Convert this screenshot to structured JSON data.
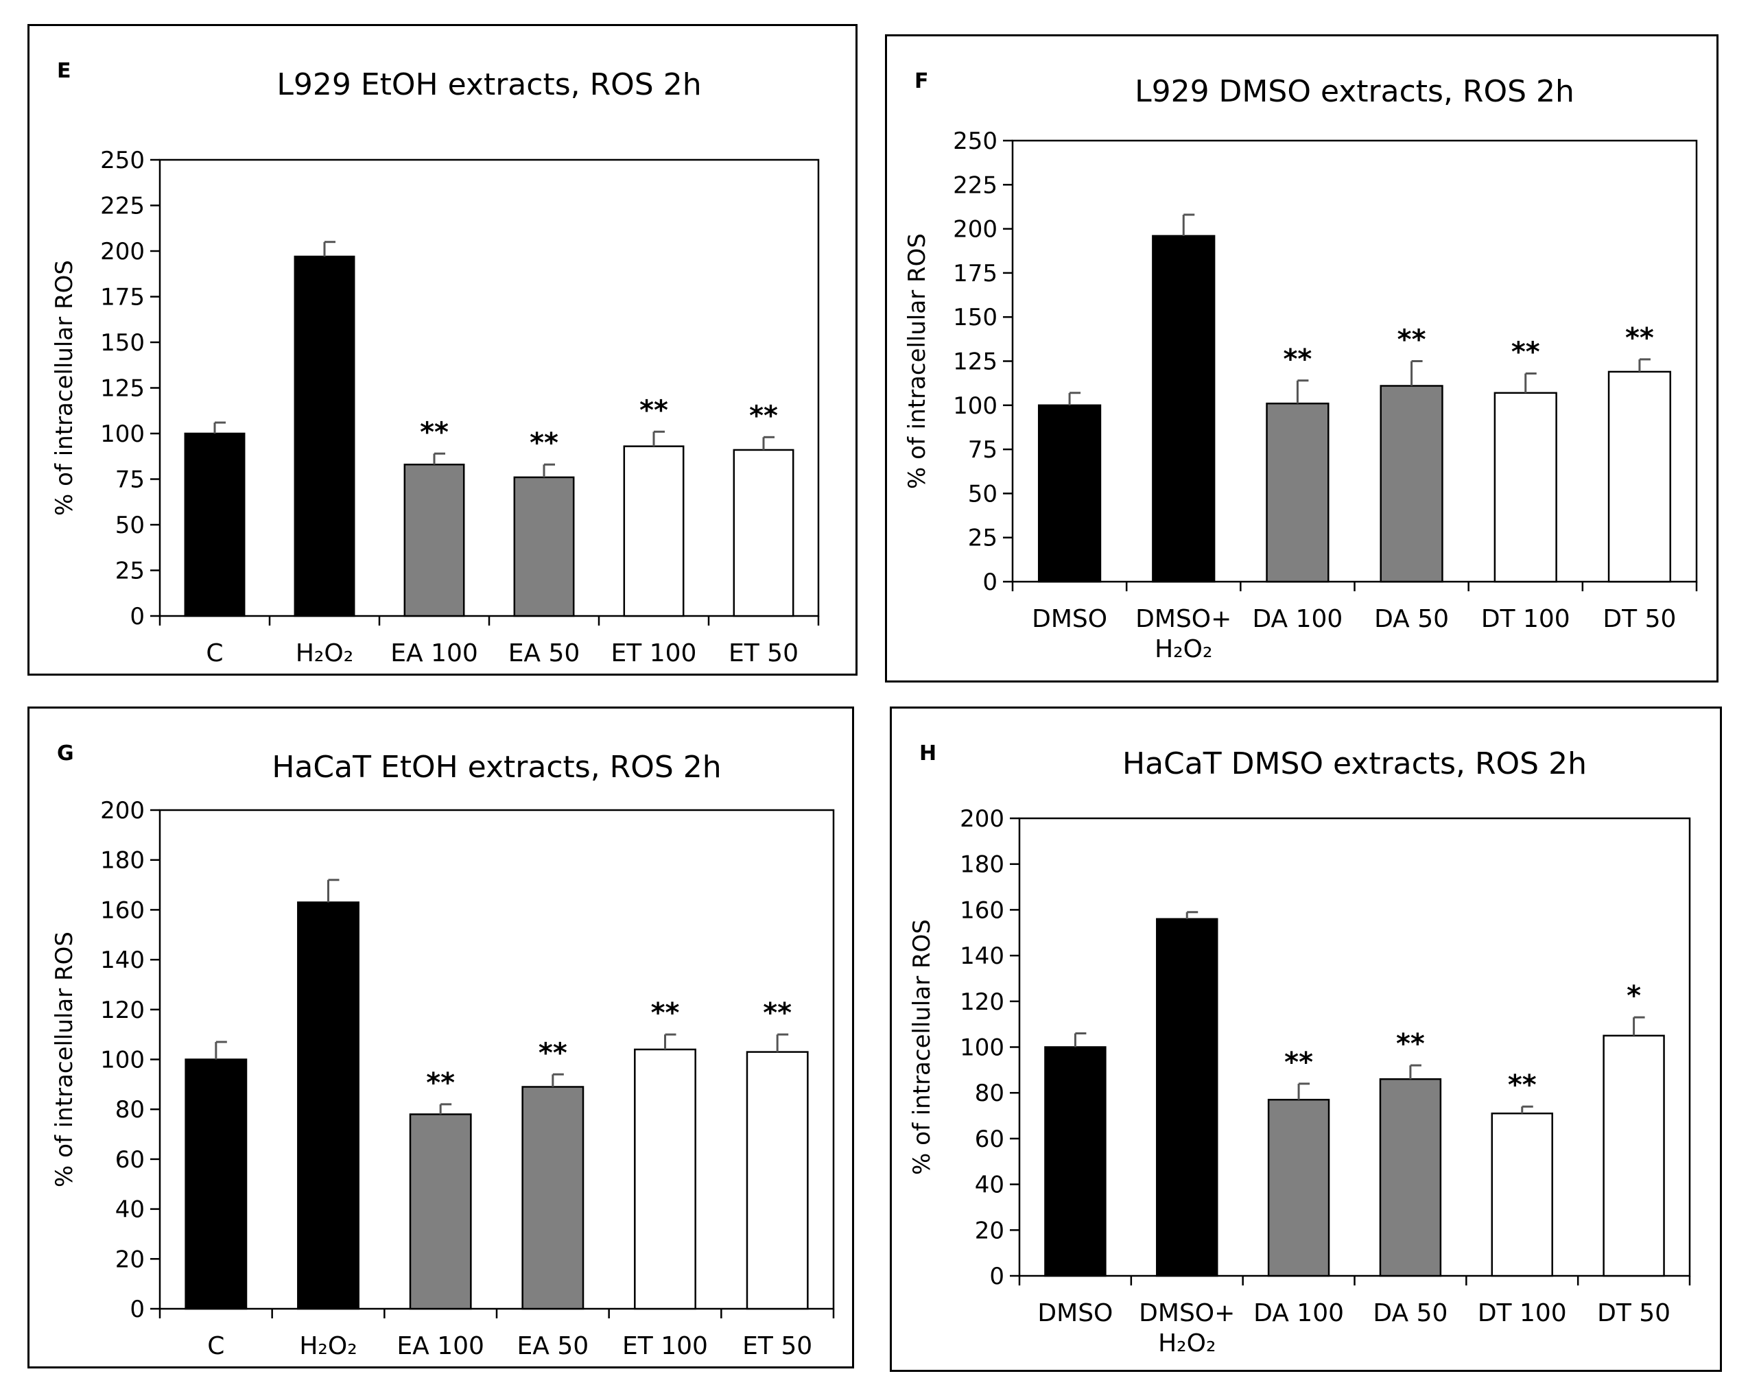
{
  "chart_data": [
    {
      "type": "bar",
      "letter": "E",
      "title": "L929 EtOH extracts, ROS 2h",
      "ylabel": "% of intracellular ROS",
      "ylim": [
        0,
        250
      ],
      "yticks": [
        0,
        25,
        50,
        75,
        100,
        125,
        150,
        175,
        200,
        225,
        250
      ],
      "categories": [
        "C",
        "H₂O₂",
        "EA 100",
        "EA 50",
        "ET 100",
        "ET 50"
      ],
      "values": [
        100,
        197,
        83,
        76,
        93,
        91
      ],
      "errors": [
        6,
        8,
        6,
        7,
        8,
        7
      ],
      "fills": [
        "#000000",
        "#000000",
        "#808080",
        "#808080",
        "#ffffff",
        "#ffffff"
      ],
      "significance": [
        "",
        "",
        "**",
        "**",
        "**",
        "**"
      ]
    },
    {
      "type": "bar",
      "letter": "F",
      "title": "L929 DMSO extracts, ROS 2h",
      "ylabel": "% of intracellular ROS",
      "ylim": [
        0,
        250
      ],
      "yticks": [
        0,
        25,
        50,
        75,
        100,
        125,
        150,
        175,
        200,
        225,
        250
      ],
      "categories": [
        "DMSO",
        "DMSO+\nH₂O₂",
        "DA 100",
        "DA 50",
        "DT 100",
        "DT 50"
      ],
      "values": [
        100,
        196,
        101,
        111,
        107,
        119
      ],
      "errors": [
        7,
        12,
        13,
        14,
        11,
        7
      ],
      "fills": [
        "#000000",
        "#000000",
        "#808080",
        "#808080",
        "#ffffff",
        "#ffffff"
      ],
      "significance": [
        "",
        "",
        "**",
        "**",
        "**",
        "**"
      ]
    },
    {
      "type": "bar",
      "letter": "G",
      "title": "HaCaT EtOH extracts, ROS 2h",
      "ylabel": "% of intracellular ROS",
      "ylim": [
        0,
        200
      ],
      "yticks": [
        0,
        20,
        40,
        60,
        80,
        100,
        120,
        140,
        160,
        180,
        200
      ],
      "categories": [
        "C",
        "H₂O₂",
        "EA 100",
        "EA 50",
        "ET 100",
        "ET 50"
      ],
      "values": [
        100,
        163,
        78,
        89,
        104,
        103
      ],
      "errors": [
        7,
        9,
        4,
        5,
        6,
        7
      ],
      "fills": [
        "#000000",
        "#000000",
        "#808080",
        "#808080",
        "#ffffff",
        "#ffffff"
      ],
      "significance": [
        "",
        "",
        "**",
        "**",
        "**",
        "**"
      ]
    },
    {
      "type": "bar",
      "letter": "H",
      "title": "HaCaT DMSO extracts, ROS 2h",
      "ylabel": "% of intracellular ROS",
      "ylim": [
        0,
        200
      ],
      "yticks": [
        0,
        20,
        40,
        60,
        80,
        100,
        120,
        140,
        160,
        180,
        200
      ],
      "categories": [
        "DMSO",
        "DMSO+\nH₂O₂",
        "DA 100",
        "DA 50",
        "DT 100",
        "DT 50"
      ],
      "values": [
        100,
        156,
        77,
        86,
        71,
        105
      ],
      "errors": [
        6,
        3,
        7,
        6,
        3,
        8
      ],
      "fills": [
        "#000000",
        "#000000",
        "#808080",
        "#808080",
        "#ffffff",
        "#ffffff"
      ],
      "significance": [
        "",
        "",
        "**",
        "**",
        "**",
        "*"
      ]
    }
  ]
}
